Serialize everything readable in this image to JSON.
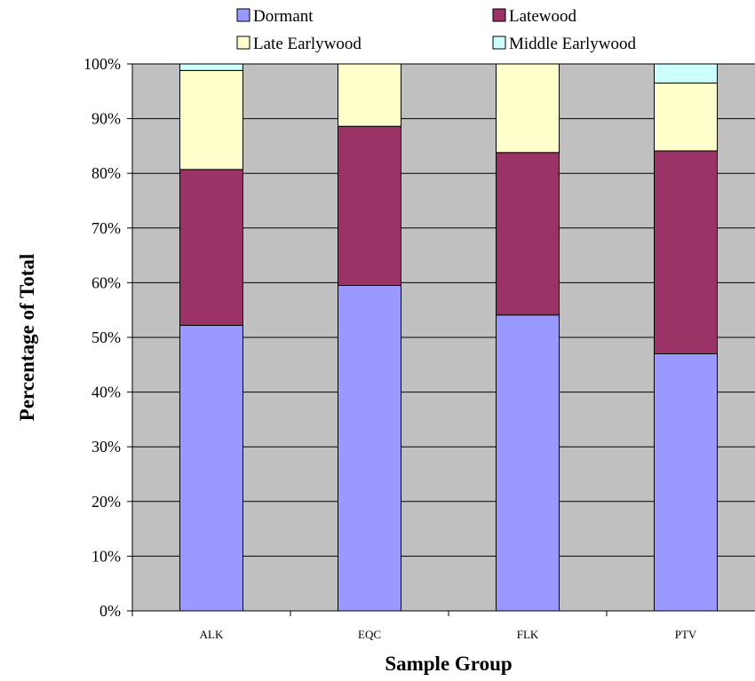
{
  "chart_data": {
    "type": "bar",
    "stacked": true,
    "percent": true,
    "categories": [
      "ALK",
      "EQC",
      "FLK",
      "PTV"
    ],
    "series": [
      {
        "name": "Dormant",
        "color": "#9999ff",
        "values": [
          52.2,
          59.5,
          54.1,
          47.0
        ]
      },
      {
        "name": "Latewood",
        "color": "#993366",
        "values": [
          28.5,
          29.1,
          29.7,
          37.1
        ]
      },
      {
        "name": "Late Earlywood",
        "color": "#ffffcc",
        "values": [
          18.1,
          11.4,
          16.2,
          12.4
        ]
      },
      {
        "name": "Middle Earlywood",
        "color": "#ccffff",
        "values": [
          1.2,
          0.0,
          0.0,
          3.5
        ]
      }
    ],
    "legend_order": [
      "Dormant",
      "Latewood",
      "Late Earlywood",
      "Middle Earlywood"
    ],
    "legend_position": "top",
    "ylim": [
      0,
      100
    ],
    "yticks": [
      "0%",
      "10%",
      "20%",
      "30%",
      "40%",
      "50%",
      "60%",
      "70%",
      "80%",
      "90%",
      "100%"
    ],
    "xlabel": "Sample Group",
    "ylabel": "Percentage of Total",
    "plot_background": "#c0c0c0",
    "grid": true
  }
}
